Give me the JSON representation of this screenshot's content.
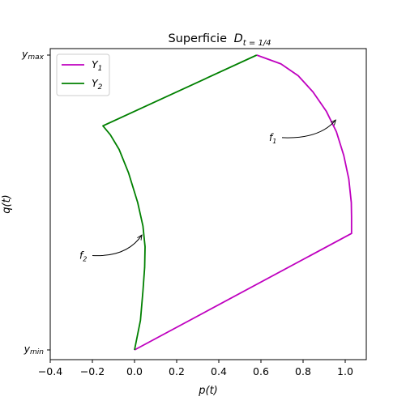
{
  "chart_data": {
    "type": "line",
    "title": "Superficie",
    "title_math": "D",
    "title_sub": "t = 1/4",
    "xlabel": "p(t)",
    "ylabel": "q(t)",
    "xlim": [
      -0.4,
      1.1
    ],
    "ylim": [
      -0.04,
      1.04
    ],
    "xticks": [
      -0.4,
      -0.2,
      0.0,
      0.2,
      0.4,
      0.6,
      0.8,
      1.0
    ],
    "xtick_labels": [
      "−0.4",
      "−0.2",
      "0.0",
      "0.2",
      "0.4",
      "0.6",
      "0.8",
      "1.0"
    ],
    "yticks": [
      0,
      1
    ],
    "ytick_labels": [
      "y",
      "y"
    ],
    "ytick_subs": [
      "min",
      "max"
    ],
    "legend": {
      "placement": "top-left",
      "entries": [
        {
          "label": "Y",
          "sub": "1",
          "color": "#bf00bf"
        },
        {
          "label": "Y",
          "sub": "2",
          "color": "#008000"
        }
      ]
    },
    "series": [
      {
        "name": "Y1",
        "color": "#bf00bf",
        "x": [
          0.0,
          1.03,
          1.03,
          1.029,
          1.017,
          0.993,
          0.958,
          0.91,
          0.847,
          0.777,
          0.695,
          0.58
        ],
        "y": [
          0.0,
          0.395,
          0.45,
          0.5,
          0.58,
          0.66,
          0.74,
          0.81,
          0.875,
          0.93,
          0.97,
          1.0
        ]
      },
      {
        "name": "Y2",
        "color": "#008000",
        "x": [
          0.58,
          -0.15,
          -0.115,
          -0.073,
          -0.028,
          0.015,
          0.04,
          0.05,
          0.048,
          0.04,
          0.028,
          0.0
        ],
        "y": [
          1.0,
          0.76,
          0.73,
          0.68,
          0.6,
          0.5,
          0.42,
          0.35,
          0.28,
          0.2,
          0.1,
          0.0
        ]
      }
    ],
    "annotations": [
      {
        "label": "f",
        "sub": "1",
        "text_xy": [
          0.7,
          0.72
        ],
        "arrow_to": [
          0.955,
          0.78
        ]
      },
      {
        "label": "f",
        "sub": "2",
        "text_xy": [
          -0.2,
          0.32
        ],
        "arrow_to": [
          0.035,
          0.39
        ]
      }
    ]
  }
}
